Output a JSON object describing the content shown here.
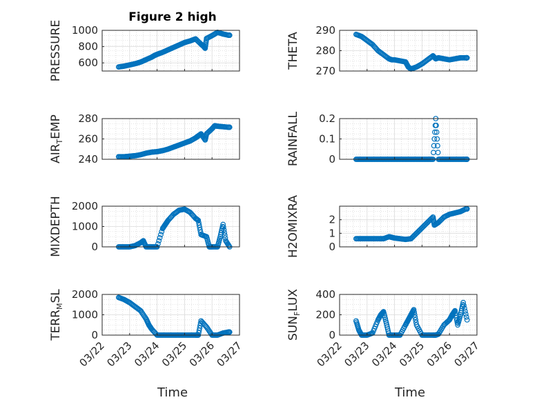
{
  "figure": {
    "title": "Figure 2 high",
    "xlabel": "Time",
    "marker_color": "#0072bd"
  },
  "chart_data": [
    {
      "type": "scatter",
      "ylabel": "PRESSURE",
      "ylim": [
        500,
        1000
      ],
      "yticks": [
        600,
        800,
        1000
      ],
      "xticks": [
        "03/22",
        "03/23",
        "03/24",
        "03/25",
        "03/26",
        "03/27"
      ],
      "grid": "minor-dotted",
      "x": [
        0.6,
        0.8,
        1.0,
        1.2,
        1.4,
        1.6,
        1.8,
        1.9,
        2.0,
        2.2,
        2.4,
        2.6,
        2.8,
        3.0,
        3.2,
        3.4,
        3.6,
        3.7,
        3.75,
        3.8,
        4.0,
        4.2,
        4.4,
        4.6,
        4.64
      ],
      "y": [
        550,
        560,
        575,
        590,
        610,
        640,
        670,
        690,
        705,
        730,
        760,
        790,
        820,
        850,
        870,
        895,
        830,
        800,
        780,
        900,
        935,
        975,
        955,
        940,
        940
      ]
    },
    {
      "type": "scatter",
      "ylabel": "THETA",
      "ylim": [
        270,
        290
      ],
      "yticks": [
        270,
        280,
        290
      ],
      "xticks": [
        "03/22",
        "03/23",
        "03/24",
        "03/25",
        "03/26",
        "03/27"
      ],
      "grid": "minor-dotted",
      "x": [
        0.6,
        0.8,
        1.0,
        1.2,
        1.4,
        1.6,
        1.8,
        1.9,
        2.0,
        2.2,
        2.4,
        2.5,
        2.6,
        2.8,
        3.0,
        3.2,
        3.4,
        3.5,
        3.6,
        3.8,
        4.0,
        4.2,
        4.4,
        4.6,
        4.64
      ],
      "y": [
        288,
        287,
        285,
        283,
        280,
        278,
        276,
        275.5,
        275.5,
        275,
        274.5,
        272,
        271,
        272,
        273.5,
        275.5,
        277.5,
        276,
        276.5,
        276,
        275.5,
        276,
        276.5,
        276.5,
        276.5
      ]
    },
    {
      "type": "scatter",
      "ylabel": "AIR_TEMP",
      "ylim": [
        240,
        280
      ],
      "yticks": [
        240,
        260,
        280
      ],
      "xticks": [
        "03/22",
        "03/23",
        "03/24",
        "03/25",
        "03/26",
        "03/27"
      ],
      "grid": "minor-dotted",
      "x": [
        0.6,
        0.8,
        1.0,
        1.2,
        1.4,
        1.6,
        1.8,
        2.0,
        2.2,
        2.4,
        2.6,
        2.8,
        3.0,
        3.2,
        3.4,
        3.5,
        3.6,
        3.75,
        3.8,
        4.0,
        4.1,
        4.2,
        4.4,
        4.6,
        4.64
      ],
      "y": [
        242.5,
        242.5,
        243,
        243.5,
        244.5,
        246,
        247,
        247.5,
        248.5,
        250,
        252,
        254,
        256,
        258,
        261,
        263,
        265,
        259,
        265,
        270,
        273,
        272.5,
        272,
        271.5,
        271.5
      ]
    },
    {
      "type": "scatter",
      "ylabel": "RAINFALL",
      "ylim": [
        0,
        0.2
      ],
      "yticks": [
        0,
        0.1,
        0.2
      ],
      "xticks": [
        "03/22",
        "03/23",
        "03/24",
        "03/25",
        "03/26",
        "03/27"
      ],
      "grid": "minor-dotted",
      "x": [
        0.6,
        0.8,
        1.0,
        1.2,
        1.4,
        1.6,
        1.8,
        2.0,
        2.2,
        2.4,
        2.6,
        2.8,
        3.0,
        3.2,
        3.4,
        3.5,
        3.6,
        3.8,
        4.0,
        4.2,
        4.4,
        4.6,
        4.64
      ],
      "y": [
        0,
        0,
        0,
        0,
        0,
        0,
        0,
        0,
        0,
        0,
        0,
        0,
        0,
        0,
        0,
        0.2,
        0,
        0,
        0,
        0,
        0,
        0,
        0
      ]
    },
    {
      "type": "scatter",
      "ylabel": "MIXDEPTH",
      "ylim": [
        0,
        2000
      ],
      "yticks": [
        0,
        1000,
        2000
      ],
      "xticks": [
        "03/22",
        "03/23",
        "03/24",
        "03/25",
        "03/26",
        "03/27"
      ],
      "grid": "minor-dotted",
      "x": [
        0.6,
        0.8,
        1.0,
        1.2,
        1.4,
        1.5,
        1.6,
        1.8,
        2.0,
        2.2,
        2.3,
        2.4,
        2.6,
        2.8,
        3.0,
        3.2,
        3.4,
        3.5,
        3.6,
        3.8,
        3.9,
        4.0,
        4.2,
        4.3,
        4.4,
        4.5,
        4.64
      ],
      "y": [
        0,
        0,
        0,
        60,
        200,
        300,
        0,
        0,
        0,
        900,
        1100,
        1300,
        1600,
        1800,
        1850,
        1700,
        1400,
        1300,
        600,
        500,
        0,
        0,
        0,
        500,
        1100,
        300,
        0
      ]
    },
    {
      "type": "scatter",
      "ylabel": "H2OMIXRA",
      "ylim": [
        0,
        3
      ],
      "yticks": [
        0,
        1,
        2
      ],
      "xticks": [
        "03/22",
        "03/23",
        "03/24",
        "03/25",
        "03/26",
        "03/27"
      ],
      "grid": "minor-dotted",
      "x": [
        0.6,
        0.8,
        1.0,
        1.2,
        1.4,
        1.6,
        1.8,
        1.9,
        2.0,
        2.2,
        2.4,
        2.6,
        2.8,
        3.0,
        3.2,
        3.4,
        3.45,
        3.6,
        3.8,
        4.0,
        4.2,
        4.4,
        4.6,
        4.64
      ],
      "y": [
        0.6,
        0.6,
        0.6,
        0.6,
        0.6,
        0.6,
        0.75,
        0.7,
        0.65,
        0.6,
        0.55,
        0.6,
        1.0,
        1.4,
        1.8,
        2.2,
        1.6,
        1.8,
        2.2,
        2.4,
        2.5,
        2.6,
        2.8,
        2.8
      ]
    },
    {
      "type": "scatter",
      "ylabel": "TERR_MSL",
      "ylim": [
        0,
        2000
      ],
      "yticks": [
        0,
        1000,
        2000
      ],
      "xticks": [
        "03/22",
        "03/23",
        "03/24",
        "03/25",
        "03/26",
        "03/27"
      ],
      "grid": "minor-dotted",
      "x": [
        0.6,
        0.8,
        1.0,
        1.2,
        1.4,
        1.6,
        1.7,
        1.8,
        2.0,
        2.2,
        2.4,
        2.6,
        2.8,
        3.0,
        3.2,
        3.4,
        3.5,
        3.6,
        3.8,
        4.0,
        4.2,
        4.4,
        4.6,
        4.64
      ],
      "y": [
        1850,
        1750,
        1600,
        1400,
        1200,
        800,
        500,
        300,
        0,
        0,
        0,
        0,
        0,
        0,
        0,
        0,
        0,
        700,
        400,
        0,
        0,
        100,
        150,
        150
      ]
    },
    {
      "type": "scatter",
      "ylabel": "SUN_FLUX",
      "ylim": [
        0,
        400
      ],
      "yticks": [
        0,
        200,
        400
      ],
      "xticks": [
        "03/22",
        "03/23",
        "03/24",
        "03/25",
        "03/26",
        "03/27"
      ],
      "grid": "minor-dotted",
      "x": [
        0.6,
        0.7,
        0.8,
        1.0,
        1.2,
        1.4,
        1.5,
        1.6,
        1.7,
        1.8,
        2.0,
        2.2,
        2.4,
        2.5,
        2.6,
        2.7,
        2.8,
        3.0,
        3.2,
        3.4,
        3.5,
        3.6,
        3.8,
        4.0,
        4.1,
        4.2,
        4.3,
        4.4,
        4.5,
        4.64
      ],
      "y": [
        140,
        50,
        0,
        0,
        20,
        150,
        200,
        230,
        120,
        0,
        0,
        0,
        100,
        150,
        200,
        250,
        100,
        0,
        0,
        0,
        0,
        10,
        100,
        150,
        200,
        240,
        100,
        200,
        320,
        150
      ]
    }
  ]
}
